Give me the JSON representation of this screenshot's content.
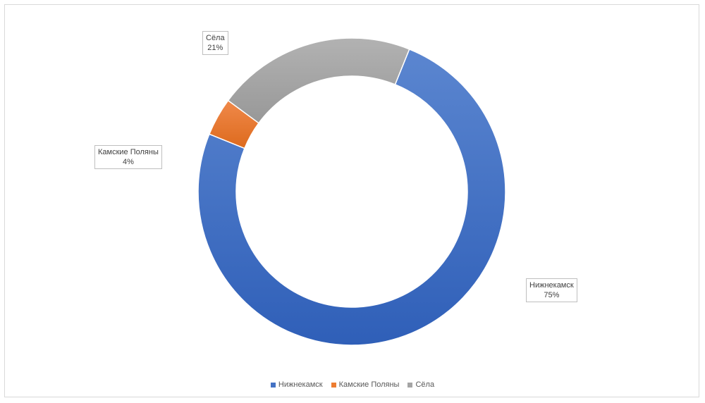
{
  "chart_data": {
    "type": "pie",
    "variant": "donut",
    "title": "",
    "legend_position": "bottom",
    "series": [
      {
        "categories": [
          "Нижнекамск",
          "Камские Поляны",
          "Сёла"
        ],
        "values": [
          75,
          4,
          21
        ],
        "labels": [
          "75%",
          "4%",
          "21%"
        ],
        "colors": [
          "#4472c4",
          "#ed7d31",
          "#a5a5a5"
        ]
      }
    ]
  },
  "legend": {
    "items": [
      {
        "label": "Нижнекамск",
        "color": "#4472c4"
      },
      {
        "label": "Камские Поляны",
        "color": "#ed7d31"
      },
      {
        "label": "Сёла",
        "color": "#a5a5a5"
      }
    ]
  },
  "labels": [
    {
      "name": "Нижнекамск",
      "value": "75%"
    },
    {
      "name": "Камские Поляны",
      "value": "4%"
    },
    {
      "name": "Сёла",
      "value": "21%"
    }
  ]
}
